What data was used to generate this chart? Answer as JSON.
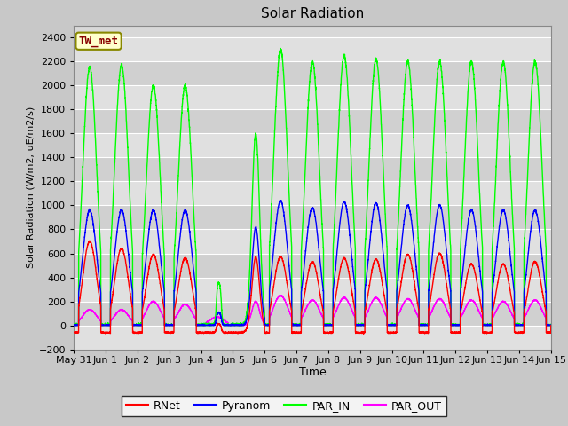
{
  "title": "Solar Radiation",
  "ylabel": "Solar Radiation (W/m2, uE/m2/s)",
  "xlabel": "Time",
  "ylim": [
    -200,
    2500
  ],
  "yticks": [
    -200,
    0,
    200,
    400,
    600,
    800,
    1000,
    1200,
    1400,
    1600,
    1800,
    2000,
    2200,
    2400
  ],
  "fig_bg_color": "#c8c8c8",
  "plot_bg_color": "#d8d8d8",
  "stripe_color": "#cccccc",
  "grid_color": "#f0f0f0",
  "line_colors": {
    "RNet": "#ff0000",
    "Pyranom": "#0000ff",
    "PAR_IN": "#00ff00",
    "PAR_OUT": "#ff00ff"
  },
  "legend_label": "TW_met",
  "legend_box_facecolor": "#ffffcc",
  "legend_box_edgecolor": "#888800",
  "legend_text_color": "#880000",
  "n_days": 15,
  "time_labels": [
    "May 31",
    "Jun 1",
    "Jun 2",
    "Jun 3",
    "Jun 4",
    "Jun 5",
    "Jun 6",
    "Jun 7",
    "Jun 8",
    "Jun 9",
    "Jun 10",
    "Jun 11",
    "Jun 12",
    "Jun 13",
    "Jun 14",
    "Jun 15"
  ]
}
